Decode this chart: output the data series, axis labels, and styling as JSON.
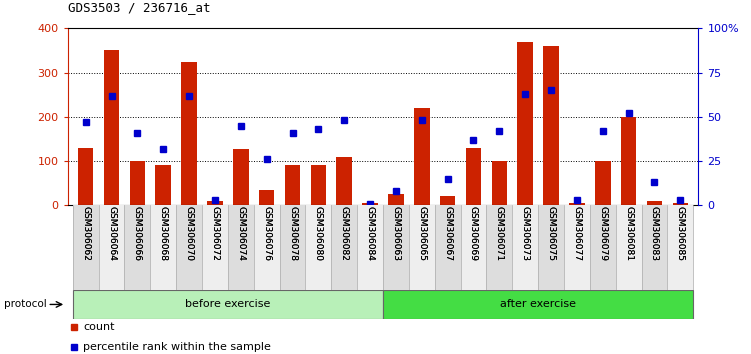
{
  "title": "GDS3503 / 236716_at",
  "categories": [
    "GSM306062",
    "GSM306064",
    "GSM306066",
    "GSM306068",
    "GSM306070",
    "GSM306072",
    "GSM306074",
    "GSM306076",
    "GSM306078",
    "GSM306080",
    "GSM306082",
    "GSM306084",
    "GSM306063",
    "GSM306065",
    "GSM306067",
    "GSM306069",
    "GSM306071",
    "GSM306073",
    "GSM306075",
    "GSM306077",
    "GSM306079",
    "GSM306081",
    "GSM306083",
    "GSM306085"
  ],
  "count": [
    130,
    352,
    100,
    90,
    325,
    10,
    128,
    35,
    90,
    90,
    110,
    5,
    25,
    220,
    20,
    130,
    100,
    368,
    360,
    5,
    100,
    200,
    10,
    5
  ],
  "percentile": [
    47,
    62,
    41,
    32,
    62,
    3,
    45,
    26,
    41,
    43,
    48,
    1,
    8,
    48,
    15,
    37,
    42,
    63,
    65,
    3,
    42,
    52,
    13,
    3
  ],
  "group_sizes": [
    12,
    12
  ],
  "group_labels": [
    "before exercise",
    "after exercise"
  ],
  "group_colors_before": "#b8f0b8",
  "group_colors_after": "#44dd44",
  "bar_color": "#cc2200",
  "dot_color": "#0000cc",
  "ylim_left": [
    0,
    400
  ],
  "ylim_right": [
    0,
    100
  ],
  "yticks_left": [
    0,
    100,
    200,
    300,
    400
  ],
  "yticks_right": [
    0,
    25,
    50,
    75,
    100
  ],
  "title_fontsize": 9,
  "axis_color_left": "#cc2200",
  "axis_color_right": "#0000cc"
}
